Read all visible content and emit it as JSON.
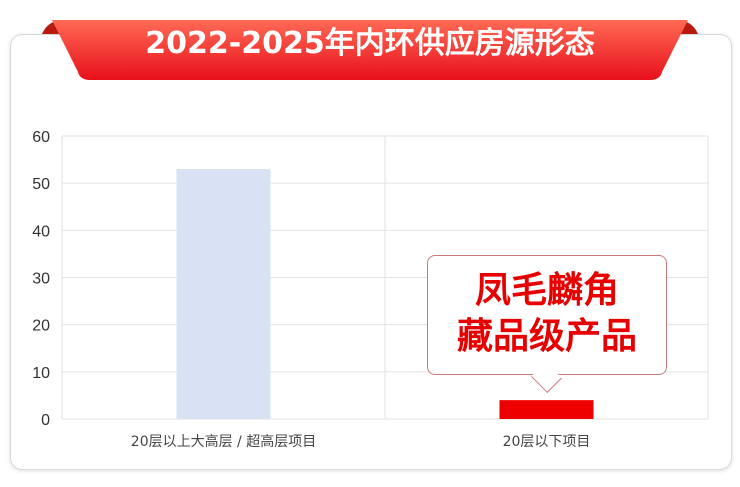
{
  "chart_data": {
    "type": "bar",
    "title": "2022-2025年内环供应房源形态",
    "categories": [
      "20层以上大高层 / 超高层项目",
      "20层以下项目"
    ],
    "values": [
      53,
      4
    ],
    "ylim": [
      0,
      60
    ],
    "yticks": [
      "0",
      "10",
      "20",
      "30",
      "40",
      "50",
      "60"
    ],
    "grid": true,
    "bar_colors": [
      "#d9e1f4",
      "#ee0000"
    ],
    "annotation": {
      "line1": "凤毛麟角",
      "line2": "藏品级产品",
      "target": "20层以下项目"
    }
  },
  "colors": {
    "ribbon": "#ee2222",
    "accent": "#e60000"
  }
}
